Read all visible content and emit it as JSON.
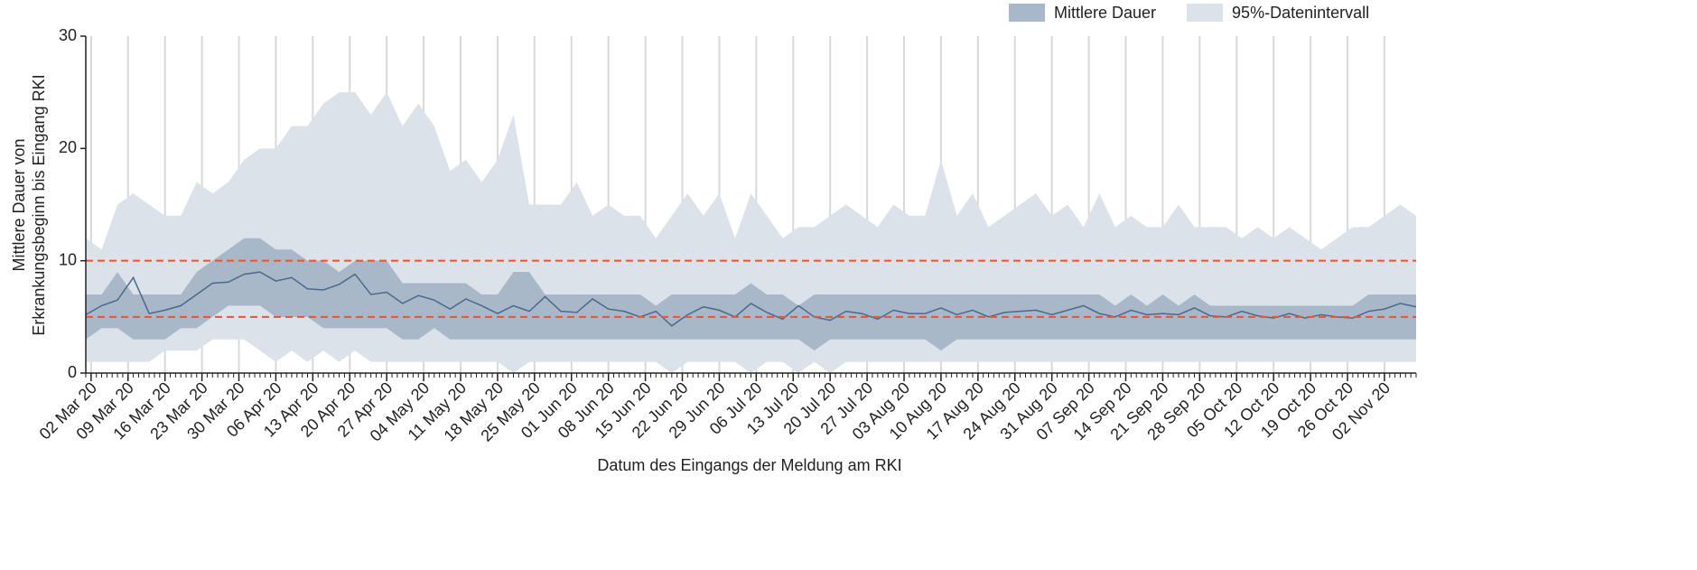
{
  "chart_data": {
    "type": "band",
    "x_label": "Datum des Eingangs der Meldung am RKI",
    "y_label": [
      "Mittlere Dauer von",
      "Erkrankungsbeginn bis Eingang RKI"
    ],
    "xlim": [
      "2020-03-01",
      "2020-11-08"
    ],
    "ylim": [
      0,
      30
    ],
    "yticks": [
      0,
      10,
      20,
      30
    ],
    "grid": "x",
    "legend": "top-right",
    "reference_lines": [
      {
        "value": 5,
        "color": "#e8552a"
      },
      {
        "value": 10,
        "color": "#e8552a"
      }
    ],
    "xticks": [
      {
        "value": "2020-03-02",
        "label": "02 Mar 20"
      },
      {
        "value": "2020-03-09",
        "label": "09 Mar 20"
      },
      {
        "value": "2020-03-16",
        "label": "16 Mar 20"
      },
      {
        "value": "2020-03-23",
        "label": "23 Mar 20"
      },
      {
        "value": "2020-03-30",
        "label": "30 Mar 20"
      },
      {
        "value": "2020-04-06",
        "label": "06 Apr 20"
      },
      {
        "value": "2020-04-13",
        "label": "13 Apr 20"
      },
      {
        "value": "2020-04-20",
        "label": "20 Apr 20"
      },
      {
        "value": "2020-04-27",
        "label": "27 Apr 20"
      },
      {
        "value": "2020-05-04",
        "label": "04 May 20"
      },
      {
        "value": "2020-05-11",
        "label": "11 May 20"
      },
      {
        "value": "2020-05-18",
        "label": "18 May 20"
      },
      {
        "value": "2020-05-25",
        "label": "25 May 20"
      },
      {
        "value": "2020-06-01",
        "label": "01 Jun 20"
      },
      {
        "value": "2020-06-08",
        "label": "08 Jun 20"
      },
      {
        "value": "2020-06-15",
        "label": "15 Jun 20"
      },
      {
        "value": "2020-06-22",
        "label": "22 Jun 20"
      },
      {
        "value": "2020-06-29",
        "label": "29 Jun 20"
      },
      {
        "value": "2020-07-06",
        "label": "06 Jul 20"
      },
      {
        "value": "2020-07-13",
        "label": "13 Jul 20"
      },
      {
        "value": "2020-07-20",
        "label": "20 Jul 20"
      },
      {
        "value": "2020-07-27",
        "label": "27 Jul 20"
      },
      {
        "value": "2020-08-03",
        "label": "03 Aug 20"
      },
      {
        "value": "2020-08-10",
        "label": "10 Aug 20"
      },
      {
        "value": "2020-08-17",
        "label": "17 Aug 20"
      },
      {
        "value": "2020-08-24",
        "label": "24 Aug 20"
      },
      {
        "value": "2020-08-31",
        "label": "31 Aug 20"
      },
      {
        "value": "2020-09-07",
        "label": "07 Sep 20"
      },
      {
        "value": "2020-09-14",
        "label": "14 Sep 20"
      },
      {
        "value": "2020-09-21",
        "label": "21 Sep 20"
      },
      {
        "value": "2020-09-28",
        "label": "28 Sep 20"
      },
      {
        "value": "2020-10-05",
        "label": "05 Oct 20"
      },
      {
        "value": "2020-10-12",
        "label": "12 Oct 20"
      },
      {
        "value": "2020-10-19",
        "label": "19 Oct 20"
      },
      {
        "value": "2020-10-26",
        "label": "26 Oct 20"
      },
      {
        "value": "2020-11-02",
        "label": "02 Nov 20"
      }
    ],
    "x": [
      "2020-03-01",
      "2020-03-04",
      "2020-03-07",
      "2020-03-10",
      "2020-03-13",
      "2020-03-16",
      "2020-03-19",
      "2020-03-22",
      "2020-03-25",
      "2020-03-28",
      "2020-03-31",
      "2020-04-03",
      "2020-04-06",
      "2020-04-09",
      "2020-04-12",
      "2020-04-15",
      "2020-04-18",
      "2020-04-21",
      "2020-04-24",
      "2020-04-27",
      "2020-04-30",
      "2020-05-03",
      "2020-05-06",
      "2020-05-09",
      "2020-05-12",
      "2020-05-15",
      "2020-05-18",
      "2020-05-21",
      "2020-05-24",
      "2020-05-27",
      "2020-05-30",
      "2020-06-02",
      "2020-06-05",
      "2020-06-08",
      "2020-06-11",
      "2020-06-14",
      "2020-06-17",
      "2020-06-20",
      "2020-06-23",
      "2020-06-26",
      "2020-06-29",
      "2020-07-02",
      "2020-07-05",
      "2020-07-08",
      "2020-07-11",
      "2020-07-14",
      "2020-07-17",
      "2020-07-20",
      "2020-07-23",
      "2020-07-26",
      "2020-07-29",
      "2020-08-01",
      "2020-08-04",
      "2020-08-07",
      "2020-08-10",
      "2020-08-13",
      "2020-08-16",
      "2020-08-19",
      "2020-08-22",
      "2020-08-25",
      "2020-08-28",
      "2020-08-31",
      "2020-09-03",
      "2020-09-06",
      "2020-09-09",
      "2020-09-12",
      "2020-09-15",
      "2020-09-18",
      "2020-09-21",
      "2020-09-24",
      "2020-09-27",
      "2020-09-30",
      "2020-10-03",
      "2020-10-06",
      "2020-10-09",
      "2020-10-12",
      "2020-10-15",
      "2020-10-18",
      "2020-10-21",
      "2020-10-24",
      "2020-10-27",
      "2020-10-30",
      "2020-11-02",
      "2020-11-05",
      "2020-11-08"
    ],
    "series": [
      {
        "name": "Mittlere Dauer",
        "color": "#a8b8c8",
        "line_color": "#4a6a8c",
        "upper": [
          7,
          7,
          9,
          7,
          7,
          7,
          7,
          9,
          10,
          11,
          12,
          12,
          11,
          11,
          10,
          10,
          9,
          10,
          10,
          10,
          8,
          8,
          8,
          8,
          8,
          7,
          7,
          9,
          9,
          7,
          7,
          7,
          7,
          7,
          7,
          7,
          6,
          7,
          7,
          7,
          7,
          7,
          8,
          7,
          7,
          6,
          7,
          7,
          7,
          7,
          7,
          7,
          7,
          7,
          7,
          7,
          7,
          7,
          7,
          7,
          7,
          7,
          7,
          7,
          7,
          6,
          7,
          6,
          7,
          6,
          7,
          6,
          6,
          6,
          6,
          6,
          6,
          6,
          6,
          6,
          6,
          7,
          7,
          7,
          7
        ],
        "values": [
          5.2,
          6,
          6.5,
          8.5,
          5.3,
          5.6,
          6,
          7,
          8,
          8.1,
          8.8,
          9,
          8.2,
          8.5,
          7.5,
          7.4,
          7.9,
          8.8,
          7,
          7.2,
          6.2,
          6.9,
          6.5,
          5.7,
          6.6,
          6,
          5.3,
          6,
          5.5,
          6.8,
          5.5,
          5.4,
          6.6,
          5.7,
          5.5,
          5,
          5.5,
          4.2,
          5.2,
          5.9,
          5.6,
          5,
          6.2,
          5.4,
          4.8,
          6,
          5,
          4.7,
          5.5,
          5.3,
          4.8,
          5.6,
          5.3,
          5.3,
          5.8,
          5.2,
          5.6,
          5,
          5.4,
          5.5,
          5.6,
          5.2,
          5.6,
          6,
          5.3,
          5,
          5.6,
          5.2,
          5.3,
          5.2,
          5.8,
          5.1,
          5,
          5.5,
          5.1,
          4.9,
          5.3,
          4.9,
          5.2,
          5,
          4.9,
          5.5,
          5.7,
          6.2,
          5.9
        ],
        "lower": [
          3,
          4,
          4,
          3,
          3,
          3,
          4,
          4,
          5,
          6,
          6,
          6,
          5,
          5,
          5,
          4,
          4,
          4,
          4,
          4,
          3,
          3,
          4,
          3,
          3,
          3,
          3,
          3,
          3,
          3,
          3,
          3,
          3,
          3,
          3,
          3,
          3,
          3,
          3,
          3,
          3,
          3,
          3,
          3,
          3,
          3,
          2,
          3,
          3,
          3,
          3,
          3,
          3,
          3,
          2,
          3,
          3,
          3,
          3,
          3,
          3,
          3,
          3,
          3,
          3,
          3,
          3,
          3,
          3,
          3,
          3,
          3,
          3,
          3,
          3,
          3,
          3,
          3,
          3,
          3,
          3,
          3,
          3,
          3,
          3
        ]
      },
      {
        "name": "95%-Datenintervall",
        "color": "#dce2ea",
        "upper": [
          12,
          11,
          15,
          16,
          15,
          14,
          14,
          17,
          16,
          17,
          19,
          20,
          20,
          22,
          22,
          24,
          25,
          25,
          23,
          25,
          22,
          24,
          22,
          18,
          19,
          17,
          19,
          23,
          15,
          15,
          15,
          17,
          14,
          15,
          14,
          14,
          12,
          14,
          16,
          14,
          16,
          12,
          16,
          14,
          12,
          13,
          13,
          14,
          15,
          14,
          13,
          15,
          14,
          14,
          19,
          14,
          16,
          13,
          14,
          15,
          16,
          14,
          15,
          13,
          16,
          13,
          14,
          13,
          13,
          15,
          13,
          13,
          13,
          12,
          13,
          12,
          13,
          12,
          11,
          12,
          13,
          13,
          14,
          15,
          14
        ],
        "lower": [
          1,
          1,
          1,
          1,
          1,
          2,
          2,
          2,
          3,
          3,
          3,
          2,
          1,
          2,
          1,
          2,
          1,
          2,
          1,
          1,
          1,
          1,
          1,
          1,
          1,
          1,
          1,
          0,
          1,
          1,
          1,
          1,
          1,
          1,
          1,
          1,
          1,
          0,
          1,
          1,
          1,
          1,
          0,
          1,
          1,
          0,
          1,
          0,
          1,
          1,
          1,
          1,
          1,
          1,
          1,
          1,
          1,
          1,
          1,
          1,
          1,
          1,
          1,
          1,
          1,
          1,
          1,
          1,
          1,
          1,
          1,
          1,
          1,
          1,
          1,
          1,
          1,
          1,
          1,
          1,
          1,
          1,
          1,
          1,
          1
        ]
      }
    ]
  }
}
